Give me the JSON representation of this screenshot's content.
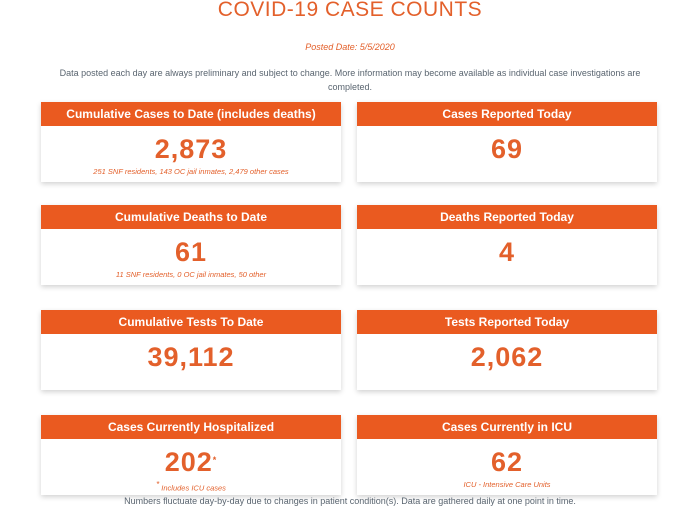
{
  "header": {
    "title": "COVID-19 CASE COUNTS",
    "posted_date": "Posted Date: 5/5/2020",
    "intro": "Data posted each day are always preliminary and subject to change. More information may become available as individual case investigations are completed."
  },
  "cards": {
    "cumulative_cases": {
      "label": "Cumulative Cases to Date (includes deaths)",
      "value": "2,873",
      "note": "251 SNF residents, 143 OC jail inmates, 2,479 other cases"
    },
    "cases_today": {
      "label": "Cases Reported Today",
      "value": "69"
    },
    "cumulative_deaths": {
      "label": "Cumulative Deaths to Date",
      "value": "61",
      "note": "11 SNF residents, 0 OC jail inmates, 50 other"
    },
    "deaths_today": {
      "label": "Deaths Reported Today",
      "value": "4"
    },
    "cumulative_tests": {
      "label": "Cumulative Tests To Date",
      "value": "39,112"
    },
    "tests_today": {
      "label": "Tests Reported Today",
      "value": "2,062"
    },
    "hospitalized": {
      "label": "Cases Currently Hospitalized",
      "value": "202",
      "marker": "*",
      "note": "Includes ICU cases"
    },
    "icu": {
      "label": "Cases Currently in ICU",
      "value": "62",
      "note": "ICU - Intensive Care Units"
    }
  },
  "footer": "Numbers fluctuate day-by-day due to changes in patient condition(s). Data are gathered daily at one point in time.",
  "colors": {
    "accent": "#ea5a20",
    "text": "#5a6570"
  }
}
